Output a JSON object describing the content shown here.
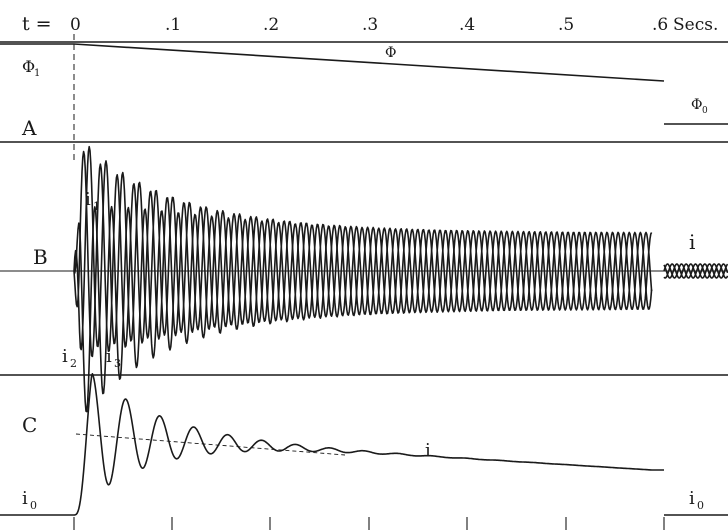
{
  "header": {
    "t_label": "t =",
    "ticks": [
      "0",
      ".1",
      ".2",
      ".3",
      ".4",
      ".5",
      ".6"
    ],
    "unit": "Secs."
  },
  "panel_a": {
    "letter": "A",
    "phi_label": "Φ",
    "phi1_label": "Φ",
    "phi1_sub": "1",
    "phi0_label": "Φ",
    "phi0_sub": "0"
  },
  "panel_b": {
    "letter": "B",
    "i_label": "i",
    "i1_label": "i",
    "i1_sub": "1",
    "i2_label": "i",
    "i2_sub": "2",
    "i3_label": "i",
    "i3_sub": "3"
  },
  "panel_c": {
    "letter": "C",
    "i_label": "i",
    "i0_left_label": "i",
    "i0_left_sub": "0",
    "i0_right_label": "i",
    "i0_right_sub": "0"
  },
  "colors": {
    "ink": "#1a1a1a",
    "paper": "#ffffff"
  }
}
